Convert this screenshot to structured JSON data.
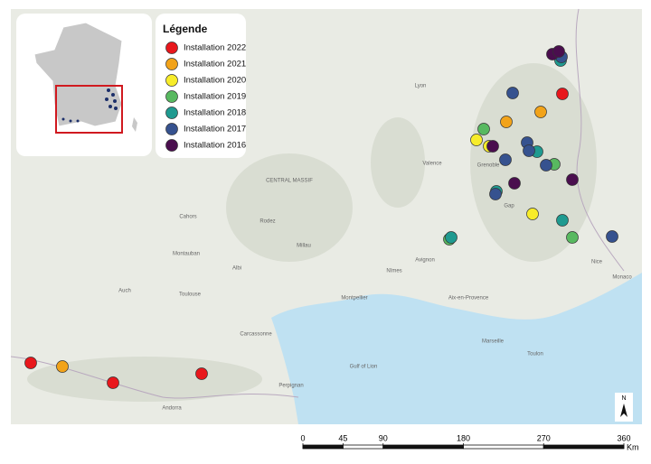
{
  "legend": {
    "title": "Légende",
    "items": [
      {
        "label": "Installation 2022",
        "color": "#e8171c"
      },
      {
        "label": "Installation 2021",
        "color": "#f2a31a"
      },
      {
        "label": "Installation 2020",
        "color": "#f7ec2a"
      },
      {
        "label": "Installation 2019",
        "color": "#58b960"
      },
      {
        "label": "Installation 2018",
        "color": "#1f9a90"
      },
      {
        "label": "Installation 2017",
        "color": "#36528f"
      },
      {
        "label": "Installation 2016",
        "color": "#4a0e4e"
      }
    ]
  },
  "places": [
    "Lyon",
    "Valence",
    "Grenoble",
    "Gap",
    "Avignon",
    "Nîmes",
    "Montpellier",
    "Aix-en-Provence",
    "Marseille",
    "Toulon",
    "Nice",
    "Monaco",
    "Toulouse",
    "Montauban",
    "Cahors",
    "Rodez",
    "Albi",
    "Millau",
    "Auch",
    "Carcassonne",
    "Perpignan",
    "Andorra",
    "CENTRAL MASSIF",
    "Gulf of Lion"
  ],
  "scale_bar": {
    "ticks": [
      0,
      45,
      90,
      180,
      270,
      360
    ],
    "unit": "Km"
  },
  "north": "N"
}
